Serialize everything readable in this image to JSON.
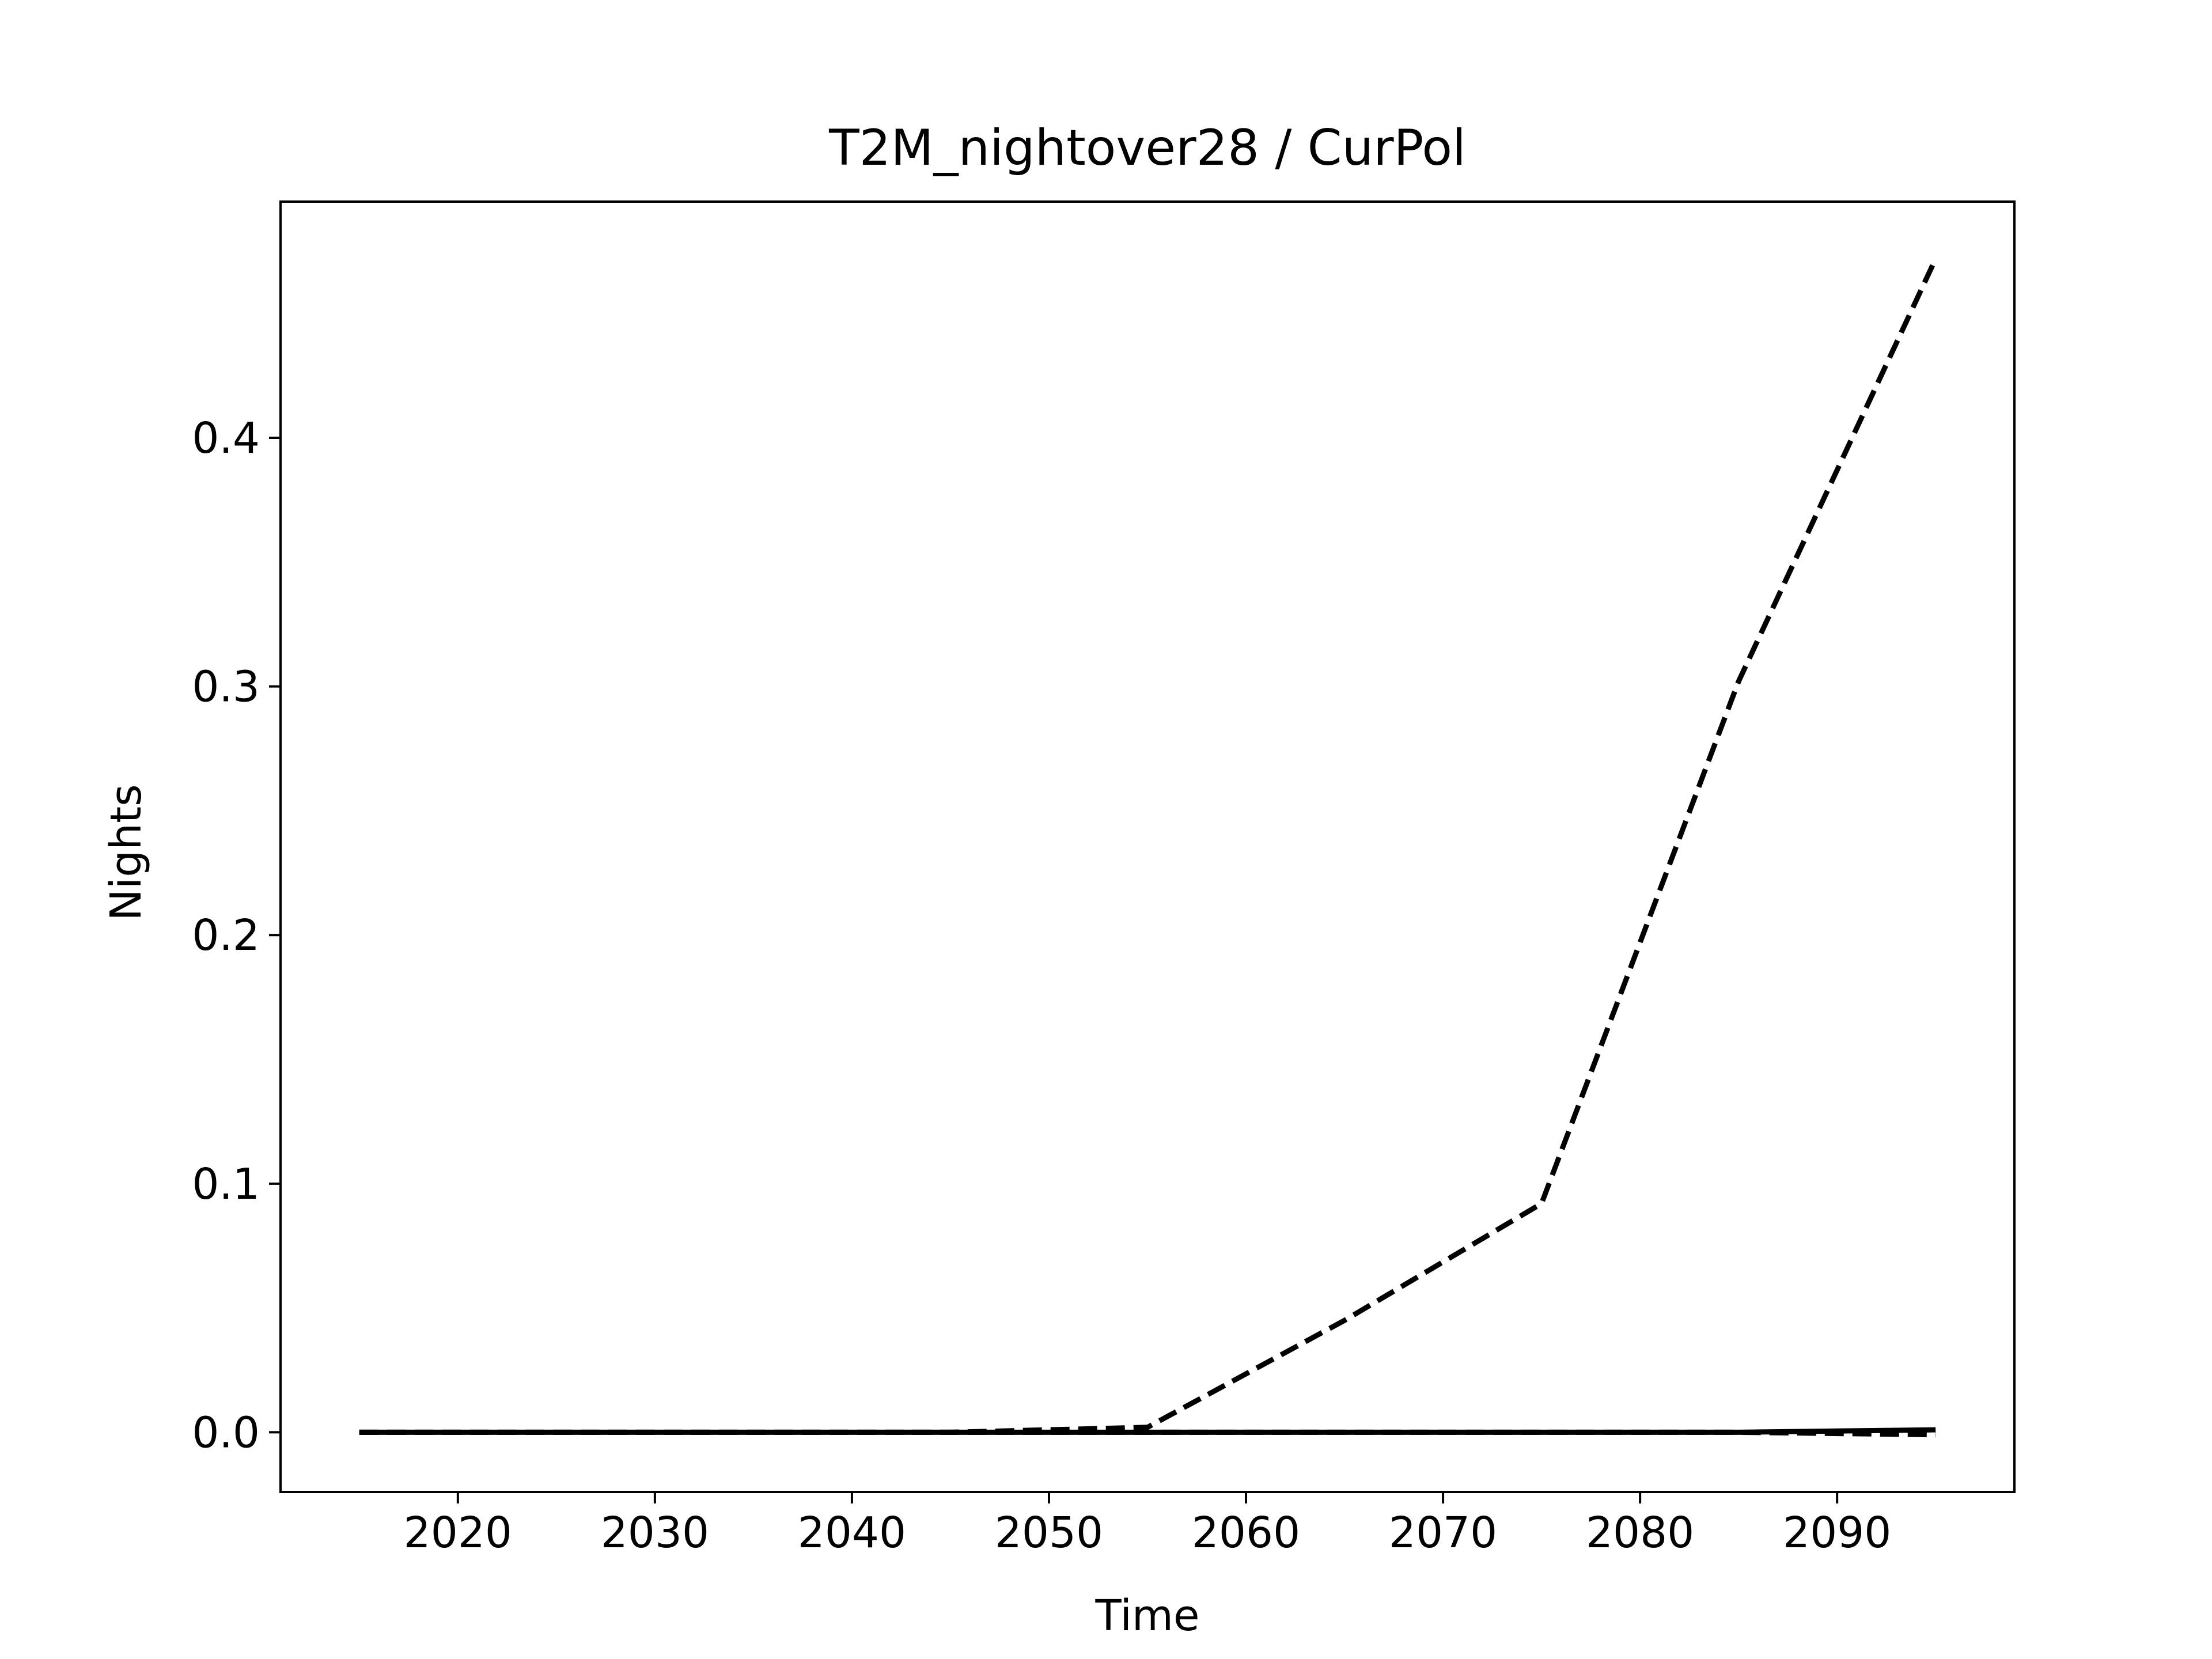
{
  "chart_data": {
    "type": "line",
    "title": "T2M_nightover28 / CurPol",
    "xlabel": "Time",
    "ylabel": "Nights",
    "xlim": [
      2011,
      2099
    ],
    "ylim": [
      -0.024,
      0.495
    ],
    "x_ticks": [
      2020,
      2030,
      2040,
      2050,
      2060,
      2070,
      2080,
      2090
    ],
    "y_ticks": [
      0.0,
      0.1,
      0.2,
      0.3,
      0.4
    ],
    "y_tick_labels": [
      "0.0",
      "0.1",
      "0.2",
      "0.3",
      "0.4"
    ],
    "grid": false,
    "legend": false,
    "series": [
      {
        "style": "dashed",
        "color": "#000000",
        "x": [
          2015,
          2025,
          2035,
          2045,
          2055,
          2065,
          2075,
          2085,
          2095
        ],
        "y": [
          0.0,
          0.0,
          0.0,
          0.0,
          0.002,
          0.045,
          0.092,
          0.302,
          0.472
        ]
      },
      {
        "style": "solid",
        "color": "#000000",
        "x": [
          2015,
          2025,
          2035,
          2045,
          2055,
          2065,
          2075,
          2085,
          2095
        ],
        "y": [
          0.0,
          0.0,
          0.0,
          0.0,
          0.0,
          0.0,
          0.0,
          0.0,
          0.001
        ]
      },
      {
        "style": "dashed",
        "color": "#000000",
        "x": [
          2015,
          2025,
          2035,
          2045,
          2055,
          2065,
          2075,
          2085,
          2095
        ],
        "y": [
          0.0,
          0.0,
          0.0,
          0.0,
          0.0,
          0.0,
          0.0,
          0.0,
          -0.001
        ]
      }
    ]
  }
}
